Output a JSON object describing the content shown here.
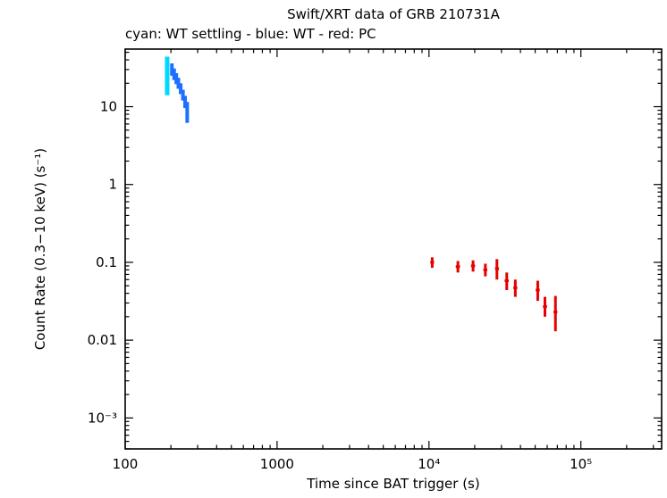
{
  "chart_data": {
    "type": "scatter",
    "title": "Swift/XRT data of GRB 210731A",
    "legend": "cyan: WT settling - blue: WT - red: PC",
    "xlabel": "Time since BAT trigger (s)",
    "ylabel": "Count Rate (0.3−10 keV) (s⁻¹)",
    "xscale": "log",
    "yscale": "log",
    "grid": false,
    "xlim": [
      100,
      340000
    ],
    "ylim": [
      0.0004,
      55
    ],
    "x_ticks": [
      {
        "value": 100,
        "label": "100"
      },
      {
        "value": 1000,
        "label": "1000"
      },
      {
        "value": 10000,
        "label": "10⁴"
      },
      {
        "value": 100000,
        "label": "10⁵"
      }
    ],
    "y_ticks": [
      {
        "value": 0.001,
        "label": "10⁻³"
      },
      {
        "value": 0.01,
        "label": "0.01"
      },
      {
        "value": 0.1,
        "label": "0.1"
      },
      {
        "value": 1,
        "label": "1"
      },
      {
        "value": 10,
        "label": "10"
      }
    ],
    "series": [
      {
        "key": "wt-settling",
        "name": "WT settling",
        "color": "#00d8ff",
        "stroke_width": 5,
        "points": [
          {
            "t": 189,
            "t_lo": 186,
            "t_hi": 192,
            "rate": 25,
            "rate_lo": 14,
            "rate_hi": 44
          }
        ]
      },
      {
        "key": "wt",
        "name": "WT",
        "color": "#1e6eff",
        "stroke_width": 4,
        "points": [
          {
            "t": 203,
            "t_lo": 200,
            "t_hi": 206,
            "rate": 30,
            "rate_lo": 25,
            "rate_hi": 36
          },
          {
            "t": 210,
            "t_lo": 207,
            "t_hi": 213,
            "rate": 26,
            "rate_lo": 22,
            "rate_hi": 31
          },
          {
            "t": 217,
            "t_lo": 214,
            "t_hi": 220,
            "rate": 23,
            "rate_lo": 19.5,
            "rate_hi": 27
          },
          {
            "t": 224,
            "t_lo": 221,
            "t_hi": 227,
            "rate": 20,
            "rate_lo": 17,
            "rate_hi": 23.5
          },
          {
            "t": 232,
            "t_lo": 229,
            "t_hi": 235,
            "rate": 17,
            "rate_lo": 14.5,
            "rate_hi": 20
          },
          {
            "t": 240,
            "t_lo": 237,
            "t_hi": 243,
            "rate": 14,
            "rate_lo": 12,
            "rate_hi": 16.5
          },
          {
            "t": 248,
            "t_lo": 245,
            "t_hi": 251,
            "rate": 11.5,
            "rate_lo": 9.6,
            "rate_hi": 13.8
          },
          {
            "t": 256,
            "t_lo": 253,
            "t_hi": 259,
            "rate": 8.5,
            "rate_lo": 6.2,
            "rate_hi": 11.5
          }
        ]
      },
      {
        "key": "pc",
        "name": "PC",
        "color": "#e60000",
        "stroke_width": 3,
        "points": [
          {
            "t": 10500,
            "t_lo": 10200,
            "t_hi": 10800,
            "rate": 0.1,
            "rate_lo": 0.085,
            "rate_hi": 0.116
          },
          {
            "t": 15500,
            "t_lo": 15000,
            "t_hi": 16000,
            "rate": 0.088,
            "rate_lo": 0.074,
            "rate_hi": 0.104
          },
          {
            "t": 19500,
            "t_lo": 18900,
            "t_hi": 20100,
            "rate": 0.09,
            "rate_lo": 0.076,
            "rate_hi": 0.106
          },
          {
            "t": 23500,
            "t_lo": 22800,
            "t_hi": 24200,
            "rate": 0.08,
            "rate_lo": 0.066,
            "rate_hi": 0.096
          },
          {
            "t": 28000,
            "t_lo": 27200,
            "t_hi": 28900,
            "rate": 0.083,
            "rate_lo": 0.06,
            "rate_hi": 0.11
          },
          {
            "t": 32500,
            "t_lo": 31500,
            "t_hi": 33500,
            "rate": 0.058,
            "rate_lo": 0.044,
            "rate_hi": 0.074
          },
          {
            "t": 37000,
            "t_lo": 35900,
            "t_hi": 38100,
            "rate": 0.047,
            "rate_lo": 0.036,
            "rate_hi": 0.06
          },
          {
            "t": 52000,
            "t_lo": 50400,
            "t_hi": 53600,
            "rate": 0.044,
            "rate_lo": 0.032,
            "rate_hi": 0.058
          },
          {
            "t": 58000,
            "t_lo": 56300,
            "t_hi": 59800,
            "rate": 0.027,
            "rate_lo": 0.02,
            "rate_hi": 0.036
          },
          {
            "t": 68000,
            "t_lo": 66000,
            "t_hi": 70000,
            "rate": 0.023,
            "rate_lo": 0.013,
            "rate_hi": 0.037
          }
        ]
      }
    ]
  }
}
